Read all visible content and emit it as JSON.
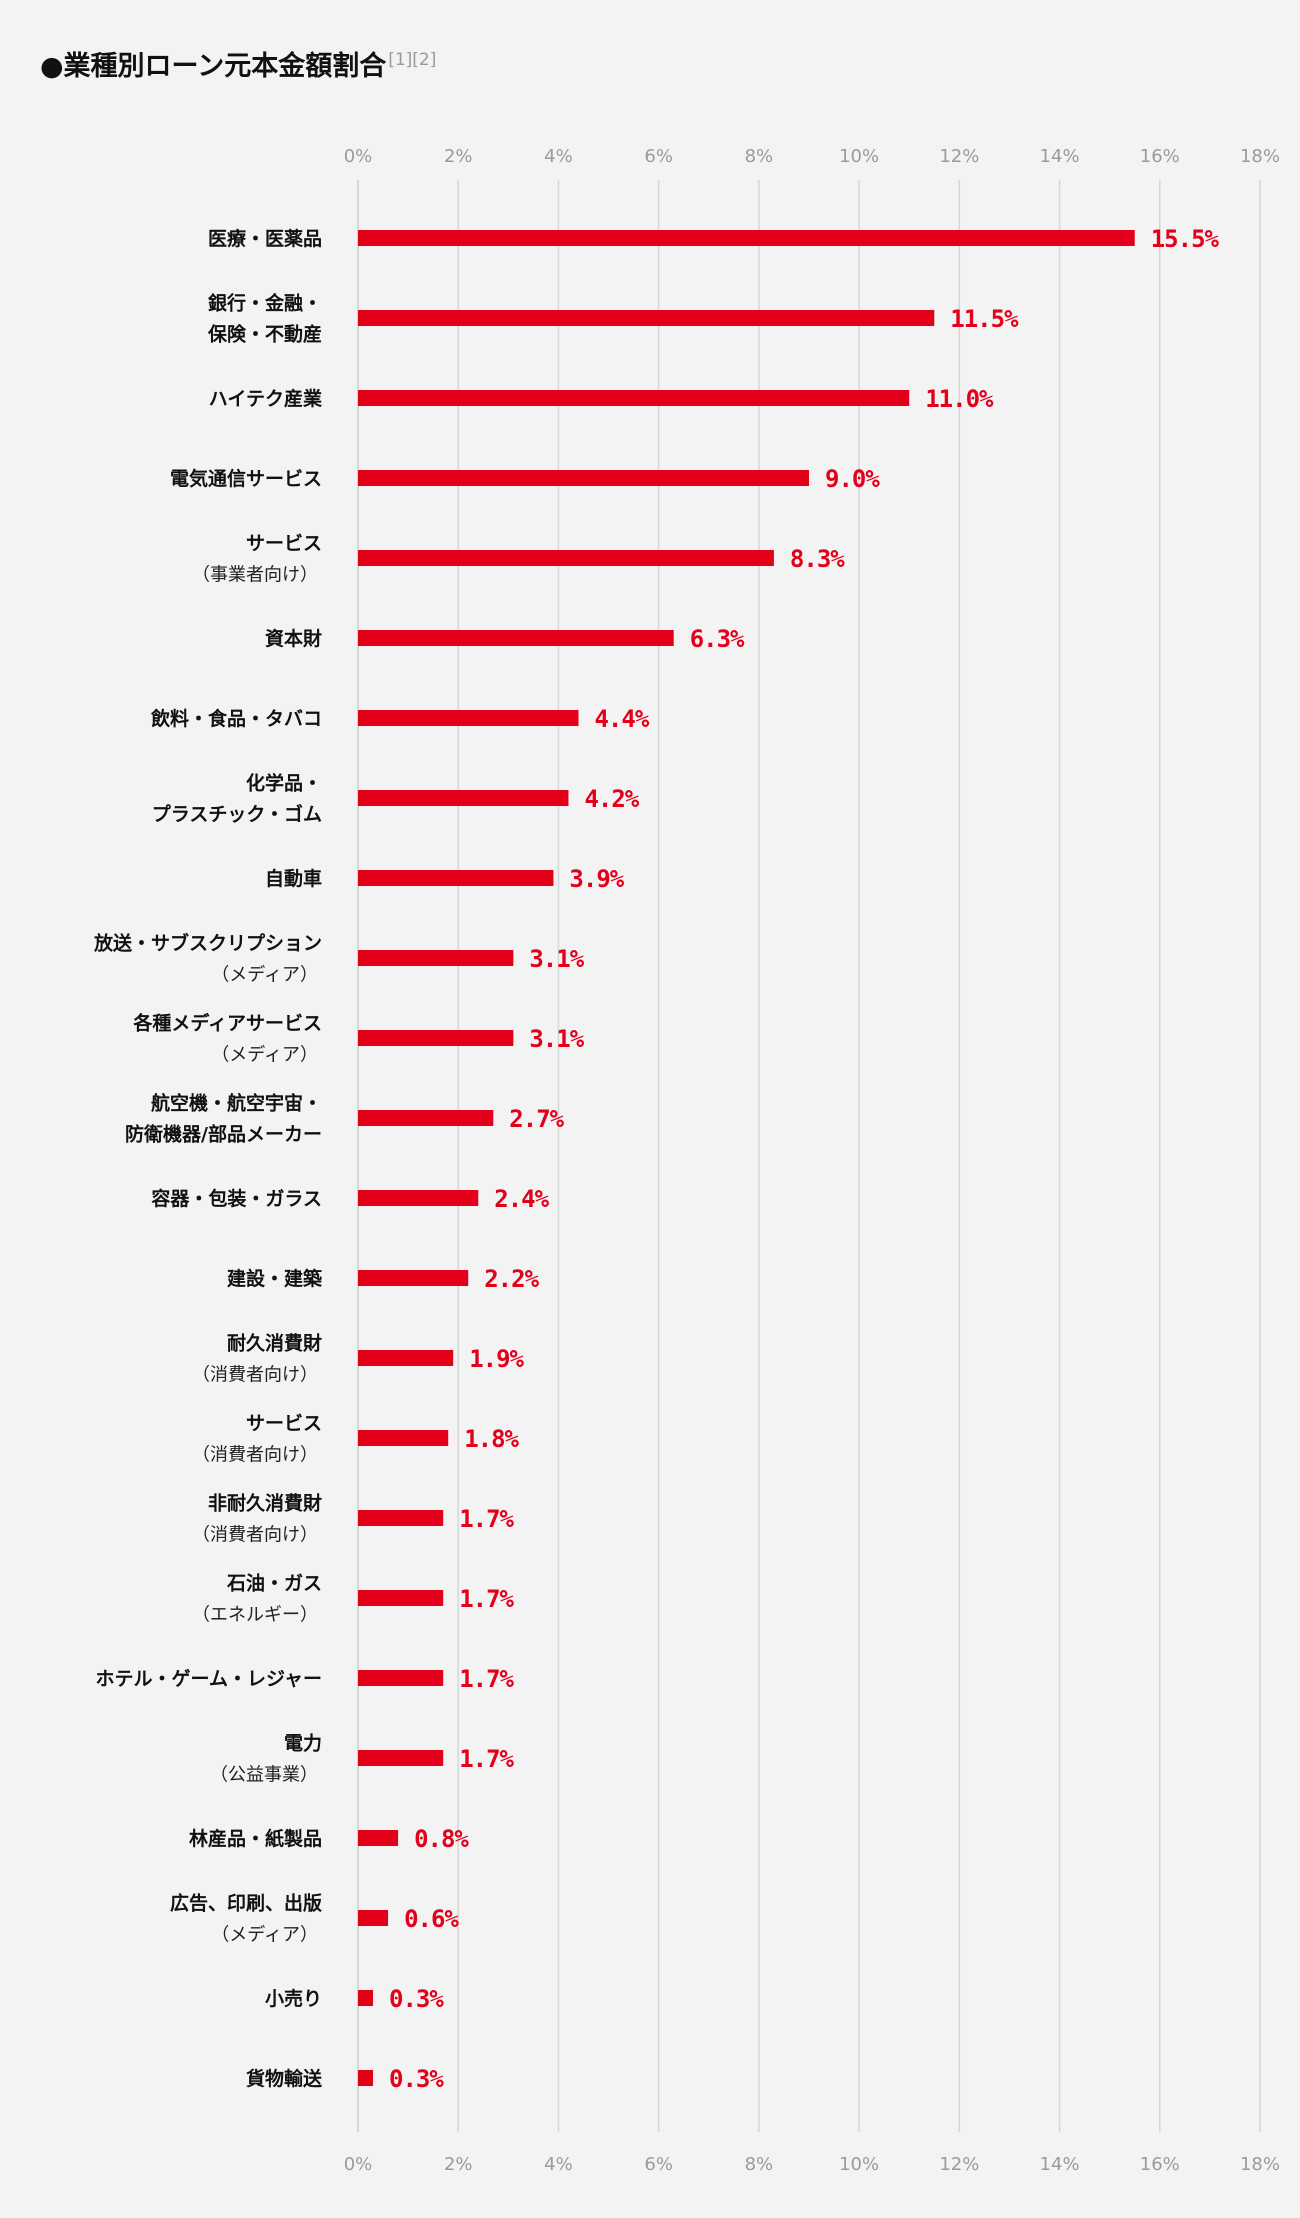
{
  "title": "●業種別ローン元本金額割合",
  "title_refs": "[1][2]",
  "colors": {
    "bar": "#e3001b",
    "value_text": "#e3001b",
    "grid": "#d6d6d6",
    "background": "#f3f3f3"
  },
  "chart_data": {
    "type": "bar",
    "orientation": "horizontal",
    "title": "●業種別ローン元本金額割合",
    "xlabel": "",
    "ylabel": "",
    "xlim": [
      0,
      18
    ],
    "x_ticks": [
      "0%",
      "2%",
      "4%",
      "6%",
      "8%",
      "10%",
      "12%",
      "14%",
      "16%",
      "18%"
    ],
    "grid": true,
    "categories": [
      {
        "lines": [
          "医療・医薬品"
        ],
        "sub": "",
        "value": 15.5,
        "label": "15.5%"
      },
      {
        "lines": [
          "銀行・金融・",
          "保険・不動産"
        ],
        "sub": "",
        "value": 11.5,
        "label": "11.5%"
      },
      {
        "lines": [
          "ハイテク産業"
        ],
        "sub": "",
        "value": 11.0,
        "label": "11.0%"
      },
      {
        "lines": [
          "電気通信サービス"
        ],
        "sub": "",
        "value": 9.0,
        "label": "9.0%"
      },
      {
        "lines": [
          "サービス"
        ],
        "sub": "（事業者向け）",
        "value": 8.3,
        "label": "8.3%"
      },
      {
        "lines": [
          "資本財"
        ],
        "sub": "",
        "value": 6.3,
        "label": "6.3%"
      },
      {
        "lines": [
          "飲料・食品・タバコ"
        ],
        "sub": "",
        "value": 4.4,
        "label": "4.4%"
      },
      {
        "lines": [
          "化学品・",
          "プラスチック・ゴム"
        ],
        "sub": "",
        "value": 4.2,
        "label": "4.2%"
      },
      {
        "lines": [
          "自動車"
        ],
        "sub": "",
        "value": 3.9,
        "label": "3.9%"
      },
      {
        "lines": [
          "放送・サブスクリプション"
        ],
        "sub": "（メディア）",
        "value": 3.1,
        "label": "3.1%"
      },
      {
        "lines": [
          "各種メディアサービス"
        ],
        "sub": "（メディア）",
        "value": 3.1,
        "label": "3.1%"
      },
      {
        "lines": [
          "航空機・航空宇宙・",
          "防衛機器/部品メーカー"
        ],
        "sub": "",
        "value": 2.7,
        "label": "2.7%"
      },
      {
        "lines": [
          "容器・包装・ガラス"
        ],
        "sub": "",
        "value": 2.4,
        "label": "2.4%"
      },
      {
        "lines": [
          "建設・建築"
        ],
        "sub": "",
        "value": 2.2,
        "label": "2.2%"
      },
      {
        "lines": [
          "耐久消費財"
        ],
        "sub": "（消費者向け）",
        "value": 1.9,
        "label": "1.9%"
      },
      {
        "lines": [
          "サービス"
        ],
        "sub": "（消費者向け）",
        "value": 1.8,
        "label": "1.8%"
      },
      {
        "lines": [
          "非耐久消費財"
        ],
        "sub": "（消費者向け）",
        "value": 1.7,
        "label": "1.7%"
      },
      {
        "lines": [
          "石油・ガス"
        ],
        "sub": "（エネルギー）",
        "value": 1.7,
        "label": "1.7%"
      },
      {
        "lines": [
          "ホテル・ゲーム・レジャー"
        ],
        "sub": "",
        "value": 1.7,
        "label": "1.7%"
      },
      {
        "lines": [
          "電力"
        ],
        "sub": "（公益事業）",
        "value": 1.7,
        "label": "1.7%"
      },
      {
        "lines": [
          "林産品・紙製品"
        ],
        "sub": "",
        "value": 0.8,
        "label": "0.8%"
      },
      {
        "lines": [
          "広告、印刷、出版"
        ],
        "sub": "（メディア）",
        "value": 0.6,
        "label": "0.6%"
      },
      {
        "lines": [
          "小売り"
        ],
        "sub": "",
        "value": 0.3,
        "label": "0.3%"
      },
      {
        "lines": [
          "貨物輸送"
        ],
        "sub": "",
        "value": 0.3,
        "label": "0.3%"
      }
    ]
  }
}
